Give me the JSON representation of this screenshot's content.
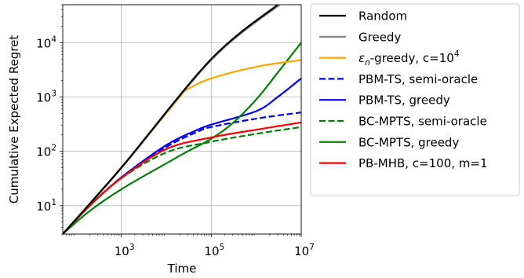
{
  "chart_data": {
    "type": "line",
    "title": "",
    "xlabel": "Time",
    "ylabel": "Cumulative Expected Regret",
    "xscale": "log",
    "yscale": "log",
    "xlim": [
      50,
      10000000
    ],
    "ylim": [
      3,
      50000
    ],
    "xticks": [
      {
        "value": 1000,
        "base": "10",
        "exp": "3"
      },
      {
        "value": 100000,
        "base": "10",
        "exp": "5"
      },
      {
        "value": 10000000,
        "base": "10",
        "exp": "7"
      }
    ],
    "yticks": [
      {
        "value": 10,
        "base": "10",
        "exp": "1"
      },
      {
        "value": 100,
        "base": "10",
        "exp": "2"
      },
      {
        "value": 1000,
        "base": "10",
        "exp": "3"
      },
      {
        "value": 10000,
        "base": "10",
        "exp": "4"
      }
    ],
    "grid": true,
    "legend_position": "outside-right",
    "series": [
      {
        "name": "Random",
        "color": "#000000",
        "style": "solid",
        "x": [
          50,
          1000,
          100000,
          3000000
        ],
        "y": [
          3,
          50,
          5000,
          50000
        ]
      },
      {
        "name": "Greedy",
        "color": "#808080",
        "style": "solid",
        "x": [
          50,
          1000,
          100000,
          3300000
        ],
        "y": [
          3,
          49,
          4800,
          50000
        ]
      },
      {
        "name": "ε_n-greedy, c=10^4",
        "name_parts": {
          "pre": "ε",
          "sub": "n",
          "mid": "-greedy, c=10",
          "sup": "4"
        },
        "color": "#ffa500",
        "style": "solid",
        "x": [
          50,
          1000,
          10000,
          20000,
          30000,
          100000,
          1000000,
          10000000
        ],
        "y": [
          3,
          50,
          500,
          1000,
          1400,
          2200,
          3600,
          4800
        ]
      },
      {
        "name": "PBM-TS, semi-oracle",
        "color": "#0000ff",
        "style": "dashed",
        "x": [
          50,
          200,
          1000,
          10000,
          50000,
          100000,
          1000000,
          10000000
        ],
        "y": [
          3,
          10,
          33,
          120,
          230,
          280,
          400,
          520
        ]
      },
      {
        "name": "PBM-TS, greedy",
        "color": "#0000ff",
        "style": "solid",
        "x": [
          50,
          200,
          1000,
          10000,
          50000,
          100000,
          1000000,
          3000000,
          10000000
        ],
        "y": [
          3,
          10,
          33,
          130,
          250,
          310,
          550,
          1000,
          2200
        ]
      },
      {
        "name": "BC-MPTS, semi-oracle",
        "color": "#008000",
        "style": "dashed",
        "x": [
          50,
          200,
          1000,
          10000,
          100000,
          1000000,
          10000000
        ],
        "y": [
          3,
          10,
          32,
          95,
          150,
          210,
          280
        ]
      },
      {
        "name": "BC-MPTS, greedy",
        "color": "#008000",
        "style": "solid",
        "x": [
          50,
          200,
          1000,
          10000,
          30000,
          100000,
          300000,
          1000000,
          3000000,
          10000000
        ],
        "y": [
          3,
          8,
          20,
          60,
          100,
          170,
          330,
          900,
          2800,
          10000
        ]
      },
      {
        "name": "PB-MHB, c=100, m=1",
        "color": "#ff0000",
        "style": "solid",
        "x": [
          50,
          200,
          1000,
          10000,
          100000,
          1000000,
          10000000
        ],
        "y": [
          3,
          10,
          32,
          110,
          180,
          250,
          340
        ]
      }
    ]
  }
}
